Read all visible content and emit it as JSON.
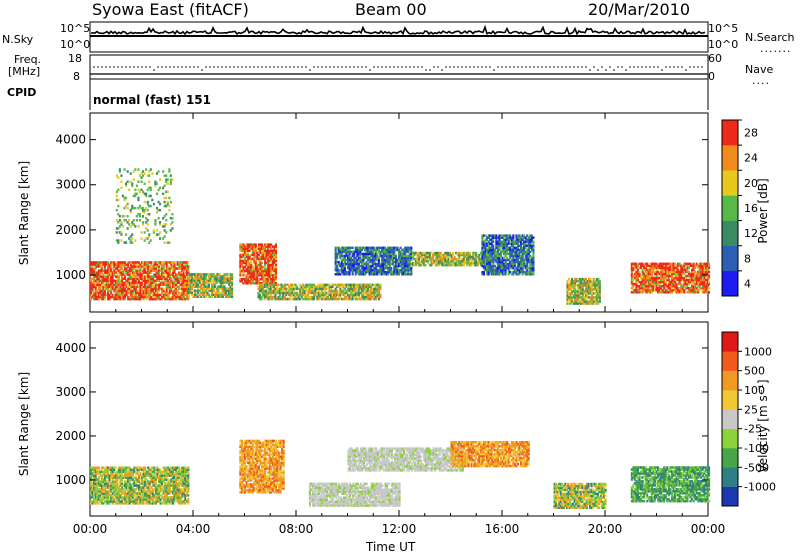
{
  "header": {
    "radar_title": "Syowa East (fitACF)",
    "beam_label": "Beam 00",
    "date_label": "20/Mar/2010"
  },
  "top_panels": {
    "nsky_label": "N.Sky",
    "nsky_ticks": [
      "10^5",
      "10^0"
    ],
    "nsearch_label": "N.Search",
    "nsearch_ticks": [
      "10^5",
      "10^0"
    ],
    "freq_label_line1": "Freq.",
    "freq_label_line2": "[MHz]",
    "freq_ticks": [
      "18",
      "8"
    ],
    "nave_label": "Nave",
    "nave_ticks": [
      "60",
      "0"
    ],
    "cpid_label": "CPID",
    "cpid_value": "normal (fast) 151"
  },
  "chart_data": [
    {
      "type": "heatmap",
      "name": "power-panel",
      "ylabel": "Slant Range [km]",
      "xlabel": "",
      "x_ticks": [
        "00:00",
        "04:00",
        "08:00",
        "12:00",
        "16:00",
        "20:00",
        "00:00"
      ],
      "y_ticks": [
        "1000",
        "2000",
        "3000",
        "4000"
      ],
      "xlim_hours": [
        0,
        24
      ],
      "ylim_km": [
        180,
        4590
      ],
      "colorbar": {
        "label": "Power [dB]",
        "ticks": [
          "4",
          "8",
          "12",
          "16",
          "20",
          "24",
          "28"
        ],
        "colors": [
          "#1c1cf0",
          "#2a5fb4",
          "#3a8a64",
          "#58b848",
          "#e6c81e",
          "#f08c1c",
          "#ee2a1a"
        ]
      },
      "regions": [
        {
          "t0": 0.0,
          "t1": 3.8,
          "r0": 450,
          "r1": 1300,
          "level": "high"
        },
        {
          "t0": 3.8,
          "t1": 5.5,
          "r0": 500,
          "r1": 1000,
          "level": "medium"
        },
        {
          "t0": 5.8,
          "t1": 7.2,
          "r0": 800,
          "r1": 1700,
          "level": "high"
        },
        {
          "t0": 6.5,
          "t1": 11.3,
          "r0": 450,
          "r1": 800,
          "level": "medium"
        },
        {
          "t0": 9.5,
          "t1": 12.5,
          "r0": 1000,
          "r1": 1600,
          "level": "low"
        },
        {
          "t0": 12.5,
          "t1": 15.5,
          "r0": 1200,
          "r1": 1500,
          "level": "medium"
        },
        {
          "t0": 15.2,
          "t1": 17.2,
          "r0": 1000,
          "r1": 1900,
          "level": "low"
        },
        {
          "t0": 18.5,
          "t1": 19.8,
          "r0": 350,
          "r1": 900,
          "level": "medium"
        },
        {
          "t0": 21.0,
          "t1": 24.0,
          "r0": 600,
          "r1": 1250,
          "level": "high"
        },
        {
          "t0": 1.0,
          "t1": 3.2,
          "r0": 1700,
          "r1": 3350,
          "level": "sparse"
        }
      ]
    },
    {
      "type": "heatmap",
      "name": "velocity-panel",
      "ylabel": "Slant Range [km]",
      "xlabel": "Time UT",
      "x_ticks": [
        "00:00",
        "04:00",
        "08:00",
        "12:00",
        "16:00",
        "20:00",
        "00:00"
      ],
      "y_ticks": [
        "1000",
        "2000",
        "3000",
        "4000"
      ],
      "xlim_hours": [
        0,
        24
      ],
      "ylim_km": [
        180,
        4590
      ],
      "colorbar": {
        "label": "Velocity [m s⁻¹]",
        "ticks": [
          "1000",
          "500",
          "100",
          "25",
          "-25",
          "-100",
          "-500",
          "-1000"
        ],
        "colors": [
          "#1c38b0",
          "#2f7f86",
          "#46a648",
          "#8cd23a",
          "#c8c8c8",
          "#f0c832",
          "#f09a22",
          "#f05a1a",
          "#e01818"
        ]
      },
      "regions": [
        {
          "t0": 0.0,
          "t1": 3.8,
          "r0": 450,
          "r1": 1300,
          "level": "mixed"
        },
        {
          "t0": 5.8,
          "t1": 7.5,
          "r0": 700,
          "r1": 1900,
          "level": "away"
        },
        {
          "t0": 8.5,
          "t1": 12.0,
          "r0": 400,
          "r1": 900,
          "level": "ground"
        },
        {
          "t0": 10.0,
          "t1": 14.5,
          "r0": 1200,
          "r1": 1700,
          "level": "ground"
        },
        {
          "t0": 14.0,
          "t1": 17.0,
          "r0": 1300,
          "r1": 1850,
          "level": "away"
        },
        {
          "t0": 18.0,
          "t1": 20.0,
          "r0": 350,
          "r1": 900,
          "level": "mixed"
        },
        {
          "t0": 21.0,
          "t1": 24.0,
          "r0": 500,
          "r1": 1300,
          "level": "toward"
        }
      ]
    }
  ],
  "colors": {
    "frame": "#000000",
    "background": "#ffffff"
  }
}
